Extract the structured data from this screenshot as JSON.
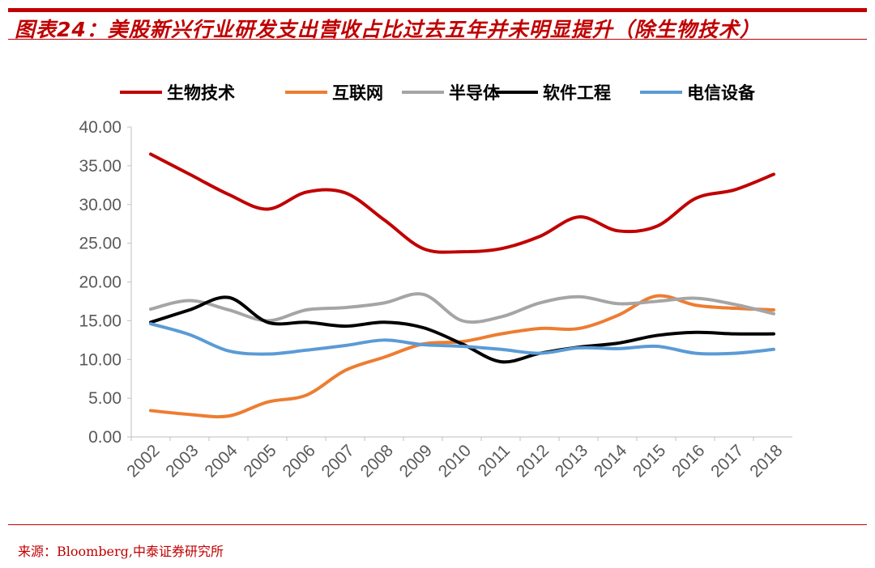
{
  "title": "图表24：美股新兴行业研发支出营收占比过去五年并未明显提升（除生物技术）",
  "source": "来源：Bloomberg,中泰证券研究所",
  "chart_data": {
    "type": "line",
    "title": "",
    "xlabel": "",
    "ylabel": "",
    "ylim": [
      0,
      40
    ],
    "yticks": [
      "0.00",
      "5.00",
      "10.00",
      "15.00",
      "20.00",
      "25.00",
      "30.00",
      "35.00",
      "40.00"
    ],
    "categories": [
      "2002",
      "2003",
      "2004",
      "2005",
      "2006",
      "2007",
      "2008",
      "2009",
      "2010",
      "2011",
      "2012",
      "2013",
      "2014",
      "2015",
      "2016",
      "2017",
      "2018"
    ],
    "legend_position": "top",
    "grid": false,
    "smooth": true,
    "series": [
      {
        "name": "生物技术",
        "color": "#c00000",
        "values": [
          36.5,
          33.9,
          31.3,
          29.4,
          31.6,
          31.5,
          28.0,
          24.3,
          23.9,
          24.3,
          25.9,
          28.4,
          26.6,
          27.2,
          30.8,
          31.9,
          33.9
        ]
      },
      {
        "name": "互联网",
        "color": "#ed7d31",
        "values": [
          3.4,
          2.9,
          2.7,
          4.5,
          5.4,
          8.6,
          10.3,
          12.0,
          12.3,
          13.3,
          14.0,
          14.0,
          15.7,
          18.2,
          17.0,
          16.6,
          16.4
        ]
      },
      {
        "name": "半导体",
        "color": "#a5a5a5",
        "values": [
          16.5,
          17.6,
          16.4,
          15.0,
          16.4,
          16.7,
          17.3,
          18.4,
          15.0,
          15.5,
          17.3,
          18.1,
          17.2,
          17.5,
          17.9,
          17.1,
          15.9
        ]
      },
      {
        "name": "软件工程",
        "color": "#000000",
        "values": [
          14.8,
          16.4,
          18.0,
          14.8,
          14.8,
          14.3,
          14.8,
          14.1,
          12.0,
          9.7,
          10.8,
          11.6,
          12.1,
          13.1,
          13.5,
          13.3,
          13.3
        ]
      },
      {
        "name": "电信设备",
        "color": "#5b9bd5",
        "values": [
          14.6,
          13.2,
          11.1,
          10.7,
          11.2,
          11.8,
          12.5,
          11.9,
          11.7,
          11.3,
          10.8,
          11.5,
          11.4,
          11.7,
          10.8,
          10.8,
          11.3
        ]
      }
    ]
  }
}
